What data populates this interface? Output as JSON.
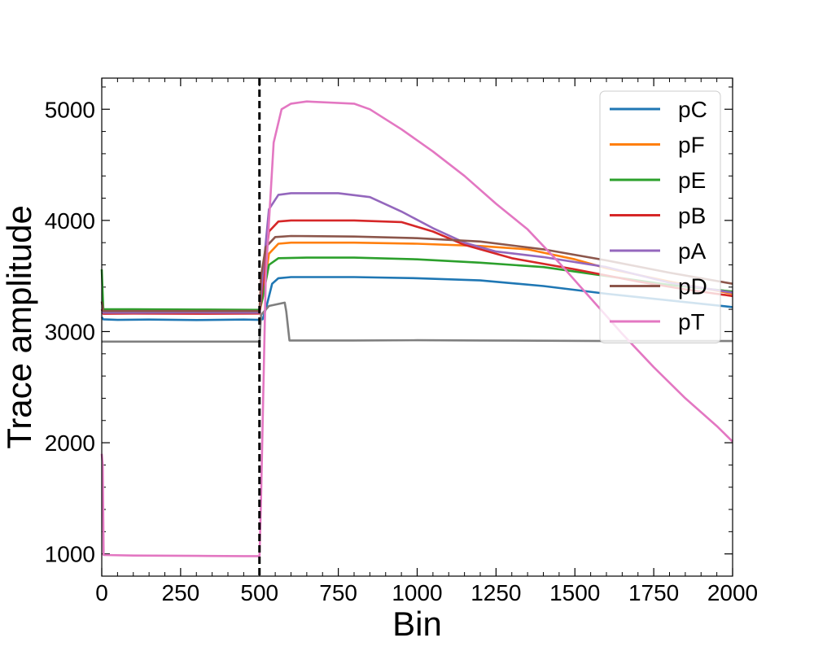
{
  "chart_data": {
    "type": "line",
    "title": "",
    "xlabel": "Bin",
    "ylabel": "Trace amplitude",
    "xlim": [
      0,
      2000
    ],
    "ylim": [
      800,
      5280
    ],
    "x_ticks": [
      0,
      250,
      500,
      750,
      1000,
      1250,
      1500,
      1750,
      2000
    ],
    "x_tick_labels": [
      "0",
      "250",
      "500",
      "750",
      "1000",
      "1250",
      "1500",
      "1750",
      "2000"
    ],
    "y_ticks": [
      1000,
      2000,
      3000,
      4000,
      5000
    ],
    "y_tick_labels": [
      "1000",
      "2000",
      "3000",
      "4000",
      "5000"
    ],
    "grid": false,
    "legend_position": "top-right",
    "vertical_marker": {
      "x": 500,
      "style": "dashed",
      "color": "#000000"
    },
    "series": [
      {
        "name": "pC",
        "color": "#1f77b4",
        "points": [
          [
            0,
            3130
          ],
          [
            5,
            3110
          ],
          [
            50,
            3105
          ],
          [
            150,
            3108
          ],
          [
            300,
            3104
          ],
          [
            450,
            3108
          ],
          [
            500,
            3105
          ],
          [
            510,
            3110
          ],
          [
            520,
            3200
          ],
          [
            540,
            3430
          ],
          [
            560,
            3480
          ],
          [
            600,
            3490
          ],
          [
            800,
            3490
          ],
          [
            1000,
            3480
          ],
          [
            1200,
            3460
          ],
          [
            1400,
            3410
          ],
          [
            1600,
            3340
          ],
          [
            1800,
            3280
          ],
          [
            2000,
            3220
          ]
        ]
      },
      {
        "name": "pF",
        "color": "#ff7f0e",
        "points": [
          [
            0,
            3200
          ],
          [
            5,
            3180
          ],
          [
            100,
            3182
          ],
          [
            300,
            3180
          ],
          [
            500,
            3180
          ],
          [
            510,
            3300
          ],
          [
            530,
            3700
          ],
          [
            560,
            3790
          ],
          [
            600,
            3800
          ],
          [
            800,
            3800
          ],
          [
            1000,
            3790
          ],
          [
            1200,
            3770
          ],
          [
            1350,
            3740
          ],
          [
            1500,
            3650
          ],
          [
            1600,
            3570
          ],
          [
            1800,
            3450
          ],
          [
            2000,
            3340
          ]
        ]
      },
      {
        "name": "pE",
        "color": "#2ca02c",
        "points": [
          [
            0,
            3560
          ],
          [
            5,
            3200
          ],
          [
            100,
            3200
          ],
          [
            300,
            3198
          ],
          [
            500,
            3195
          ],
          [
            510,
            3300
          ],
          [
            530,
            3600
          ],
          [
            560,
            3660
          ],
          [
            650,
            3665
          ],
          [
            800,
            3665
          ],
          [
            1000,
            3650
          ],
          [
            1200,
            3620
          ],
          [
            1400,
            3580
          ],
          [
            1600,
            3500
          ],
          [
            1800,
            3420
          ],
          [
            2000,
            3360
          ]
        ]
      },
      {
        "name": "pB",
        "color": "#d62728",
        "points": [
          [
            0,
            3200
          ],
          [
            5,
            3160
          ],
          [
            100,
            3162
          ],
          [
            300,
            3160
          ],
          [
            500,
            3162
          ],
          [
            510,
            3400
          ],
          [
            530,
            3900
          ],
          [
            560,
            3990
          ],
          [
            600,
            4000
          ],
          [
            800,
            4000
          ],
          [
            950,
            3985
          ],
          [
            1050,
            3900
          ],
          [
            1150,
            3780
          ],
          [
            1300,
            3660
          ],
          [
            1500,
            3560
          ],
          [
            1700,
            3450
          ],
          [
            1850,
            3380
          ],
          [
            2000,
            3320
          ]
        ]
      },
      {
        "name": "pA",
        "color": "#9467bd",
        "points": [
          [
            0,
            3180
          ],
          [
            5,
            3170
          ],
          [
            100,
            3170
          ],
          [
            300,
            3172
          ],
          [
            500,
            3170
          ],
          [
            510,
            3500
          ],
          [
            530,
            4100
          ],
          [
            560,
            4230
          ],
          [
            600,
            4245
          ],
          [
            750,
            4245
          ],
          [
            850,
            4210
          ],
          [
            950,
            4080
          ],
          [
            1050,
            3930
          ],
          [
            1150,
            3800
          ],
          [
            1250,
            3720
          ],
          [
            1400,
            3670
          ],
          [
            1600,
            3580
          ],
          [
            1800,
            3440
          ],
          [
            2000,
            3350
          ]
        ]
      },
      {
        "name": "pD",
        "color": "#8c564b",
        "points": [
          [
            0,
            3270
          ],
          [
            5,
            3185
          ],
          [
            100,
            3185
          ],
          [
            300,
            3185
          ],
          [
            500,
            3185
          ],
          [
            505,
            3500
          ],
          [
            520,
            3760
          ],
          [
            550,
            3850
          ],
          [
            600,
            3860
          ],
          [
            800,
            3855
          ],
          [
            1000,
            3840
          ],
          [
            1200,
            3810
          ],
          [
            1400,
            3740
          ],
          [
            1600,
            3640
          ],
          [
            1800,
            3530
          ],
          [
            2000,
            3430
          ]
        ]
      },
      {
        "name": "",
        "color": "#7f7f7f",
        "points": [
          [
            0,
            2910
          ],
          [
            100,
            2910
          ],
          [
            300,
            2910
          ],
          [
            500,
            2910
          ],
          [
            505,
            3150
          ],
          [
            530,
            3230
          ],
          [
            580,
            3260
          ],
          [
            585,
            3180
          ],
          [
            595,
            2920
          ],
          [
            800,
            2920
          ],
          [
            1000,
            2922
          ],
          [
            1200,
            2920
          ],
          [
            1600,
            2915
          ],
          [
            2000,
            2915
          ]
        ]
      },
      {
        "name": "pT",
        "color": "#e377c2",
        "points": [
          [
            0,
            1900
          ],
          [
            3,
            1800
          ],
          [
            6,
            990
          ],
          [
            100,
            985
          ],
          [
            300,
            982
          ],
          [
            450,
            980
          ],
          [
            500,
            980
          ],
          [
            505,
            1500
          ],
          [
            520,
            3500
          ],
          [
            545,
            4700
          ],
          [
            570,
            5000
          ],
          [
            600,
            5050
          ],
          [
            650,
            5070
          ],
          [
            800,
            5050
          ],
          [
            850,
            5000
          ],
          [
            950,
            4820
          ],
          [
            1050,
            4620
          ],
          [
            1150,
            4400
          ],
          [
            1250,
            4150
          ],
          [
            1350,
            3920
          ],
          [
            1450,
            3620
          ],
          [
            1550,
            3300
          ],
          [
            1650,
            2980
          ],
          [
            1750,
            2680
          ],
          [
            1850,
            2400
          ],
          [
            1950,
            2150
          ],
          [
            2000,
            2010
          ]
        ]
      }
    ]
  }
}
